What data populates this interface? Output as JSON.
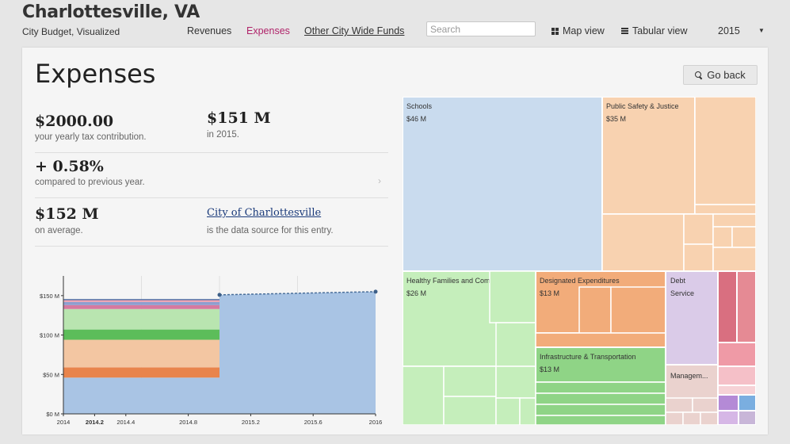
{
  "header": {
    "title": "Charlottesville, VA",
    "subtitle": "City Budget, Visualized",
    "nav": [
      {
        "label": "Revenues",
        "active": false
      },
      {
        "label": "Expenses",
        "active": true
      },
      {
        "label": "Other City Wide Funds",
        "active": false
      }
    ],
    "search_placeholder": "Search",
    "map_view_label": "Map view",
    "tabular_view_label": "Tabular view",
    "year": "2015",
    "accent_color": "#b0246a"
  },
  "main": {
    "title": "Expenses",
    "go_back_label": "Go back",
    "stats": {
      "tax_value": "$2000.00",
      "tax_caption": "your yearly tax contribution.",
      "total_value": "$151 M",
      "total_caption": "in 2015.",
      "change_value": "+ 0.58%",
      "change_caption": "compared to previous year.",
      "average_value": "$152 M",
      "average_caption": "on average.",
      "source_link": "City of Charlottesville",
      "source_caption": "is the data source for this entry."
    }
  },
  "chart_data": [
    {
      "type": "area",
      "x_ticks": [
        "2014",
        "2014.2",
        "2014.4",
        "2014.8",
        "2015.2",
        "2015.6",
        "2016"
      ],
      "y_ticks": [
        "$0 M",
        "$50 M",
        "$100 M",
        "$150 M"
      ],
      "ylim": [
        0,
        175
      ],
      "x_range": [
        2014,
        2016
      ],
      "highlighted_x_tick": "2014.2",
      "series": [
        {
          "color": "#a9c4e4",
          "values": [
            46,
            46
          ]
        },
        {
          "color": "#e8844c",
          "values": [
            13,
            13
          ]
        },
        {
          "color": "#f3c6a2",
          "values": [
            35,
            35
          ]
        },
        {
          "color": "#5cbd5a",
          "values": [
            13,
            13
          ]
        },
        {
          "color": "#b9e5b0",
          "values": [
            26,
            26
          ]
        },
        {
          "color": "#d57aa0",
          "values": [
            5,
            5
          ]
        },
        {
          "color": "#8e9fcf",
          "values": [
            4,
            4
          ]
        },
        {
          "color": "#f0a0b0",
          "values": [
            3,
            3
          ]
        }
      ],
      "projection": {
        "color": "#a9c4e4",
        "x": [
          2015,
          2016
        ],
        "values": [
          151,
          155
        ]
      }
    },
    {
      "type": "treemap",
      "cells": [
        {
          "name": "Schools",
          "value": "$46 M",
          "color": "#c9dbee"
        },
        {
          "name": "Public Safety & Justice",
          "value": "$35 M",
          "color": "#f8d2b0"
        },
        {
          "name": "Healthy Families and Community",
          "value": "$26 M",
          "color": "#c5eebb"
        },
        {
          "name": "Designated Expenditures",
          "value": "$13 M",
          "color": "#f2ac7a"
        },
        {
          "name": "Infrastructure & Transportation",
          "value": "$13 M",
          "color": "#8fd486"
        },
        {
          "name": "Debt Service",
          "value": "",
          "color": "#dacbe8"
        },
        {
          "name": "Managem...",
          "value": "",
          "color": "#ead2ce"
        }
      ]
    }
  ]
}
